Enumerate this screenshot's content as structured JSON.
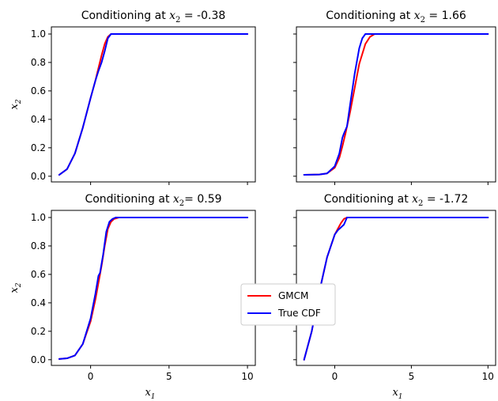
{
  "chart_data": {
    "type": "line",
    "legend": {
      "placement": "center",
      "entries": [
        {
          "name": "GMCM",
          "color": "#ff0000"
        },
        {
          "name": "True CDF",
          "color": "#0000ff"
        }
      ]
    },
    "xlabel": "x_1",
    "ylabel": "x_2",
    "xlim": [
      -2.5,
      10.5
    ],
    "ylim": [
      -0.04,
      1.05
    ],
    "xticks": [
      0,
      5,
      10
    ],
    "yticks": [
      0.0,
      0.2,
      0.4,
      0.6,
      0.8,
      1.0
    ],
    "ytick_labels": [
      "0.0",
      "0.2",
      "0.4",
      "0.6",
      "0.8",
      "1.0"
    ],
    "panels": [
      {
        "title_prefix": "Conditioning at ",
        "title_var": "x",
        "title_sub": "2",
        "title_suffix": " = -0.38",
        "series": [
          {
            "name": "GMCM",
            "color": "#ff0000",
            "x": [
              -2,
              -1.5,
              -1,
              -0.5,
              0,
              0.3,
              0.5,
              0.7,
              0.9,
              1.1,
              1.3,
              1.5,
              2,
              3,
              5,
              10
            ],
            "y": [
              0.01,
              0.05,
              0.16,
              0.34,
              0.55,
              0.67,
              0.76,
              0.85,
              0.93,
              0.98,
              1.0,
              1.0,
              1.0,
              1.0,
              1.0,
              1.0
            ]
          },
          {
            "name": "True CDF",
            "color": "#0000ff",
            "x": [
              -2,
              -1.5,
              -1,
              -0.5,
              0,
              0.3,
              0.5,
              0.7,
              0.9,
              1.1,
              1.3,
              1.5,
              2,
              3,
              5,
              10
            ],
            "y": [
              0.01,
              0.05,
              0.16,
              0.34,
              0.55,
              0.67,
              0.74,
              0.8,
              0.88,
              0.97,
              1.0,
              1.0,
              1.0,
              1.0,
              1.0,
              1.0
            ]
          }
        ]
      },
      {
        "title_prefix": "Conditioning at ",
        "title_var": "x",
        "title_sub": "2",
        "title_suffix": " = 1.66",
        "series": [
          {
            "name": "GMCM",
            "color": "#ff0000",
            "x": [
              -2,
              -1,
              -0.5,
              0,
              0.3,
              0.5,
              0.7,
              1,
              1.3,
              1.6,
              2,
              2.3,
              2.6,
              3,
              3.5,
              5,
              10
            ],
            "y": [
              0.01,
              0.012,
              0.02,
              0.06,
              0.13,
              0.21,
              0.3,
              0.45,
              0.62,
              0.79,
              0.93,
              0.98,
              1.0,
              1.0,
              1.0,
              1.0,
              1.0
            ]
          },
          {
            "name": "True CDF",
            "color": "#0000ff",
            "x": [
              -2,
              -1,
              -0.5,
              0,
              0.3,
              0.5,
              0.6,
              0.8,
              1.0,
              1.3,
              1.6,
              1.8,
              2.0,
              2.3,
              3,
              5,
              10
            ],
            "y": [
              0.01,
              0.012,
              0.02,
              0.07,
              0.16,
              0.27,
              0.3,
              0.35,
              0.5,
              0.72,
              0.9,
              0.97,
              1.0,
              1.0,
              1.0,
              1.0,
              1.0
            ]
          }
        ]
      },
      {
        "title_prefix": "Conditioning at ",
        "title_var": "x",
        "title_sub": "2",
        "title_suffix": "= 0.59",
        "series": [
          {
            "name": "GMCM",
            "color": "#ff0000",
            "x": [
              -2,
              -1.5,
              -1,
              -0.5,
              0,
              0.3,
              0.5,
              0.7,
              0.9,
              1.1,
              1.3,
              1.5,
              1.8,
              2,
              3,
              5,
              10
            ],
            "y": [
              0.005,
              0.01,
              0.03,
              0.11,
              0.27,
              0.42,
              0.54,
              0.66,
              0.8,
              0.92,
              0.97,
              0.99,
              1.0,
              1.0,
              1.0,
              1.0,
              1.0
            ]
          },
          {
            "name": "True CDF",
            "color": "#0000ff",
            "x": [
              -2,
              -1.5,
              -1,
              -0.5,
              0,
              0.3,
              0.5,
              0.6,
              0.8,
              1.0,
              1.2,
              1.4,
              1.6,
              2,
              3,
              5,
              10
            ],
            "y": [
              0.005,
              0.01,
              0.03,
              0.11,
              0.29,
              0.46,
              0.59,
              0.61,
              0.74,
              0.9,
              0.97,
              0.99,
              1.0,
              1.0,
              1.0,
              1.0,
              1.0
            ]
          }
        ]
      },
      {
        "title_prefix": "Conditioning at ",
        "title_var": "x",
        "title_sub": "2",
        "title_suffix": " = -1.72",
        "series": [
          {
            "name": "GMCM",
            "color": "#ff0000",
            "x": [
              -2,
              -1.5,
              -1,
              -0.5,
              0,
              0.2,
              0.4,
              0.6,
              0.8,
              1.0,
              1.5,
              2,
              3,
              5,
              10
            ],
            "y": [
              0.0,
              0.2,
              0.48,
              0.72,
              0.88,
              0.92,
              0.96,
              0.99,
              1.0,
              1.0,
              1.0,
              1.0,
              1.0,
              1.0,
              1.0
            ]
          },
          {
            "name": "True CDF",
            "color": "#0000ff",
            "x": [
              -2,
              -1.5,
              -1,
              -0.5,
              0,
              0.2,
              0.4,
              0.6,
              0.8,
              1.0,
              1.5,
              2,
              3,
              5,
              10
            ],
            "y": [
              0.0,
              0.2,
              0.48,
              0.72,
              0.88,
              0.91,
              0.93,
              0.95,
              1.0,
              1.0,
              1.0,
              1.0,
              1.0,
              1.0,
              1.0
            ]
          }
        ]
      }
    ]
  }
}
